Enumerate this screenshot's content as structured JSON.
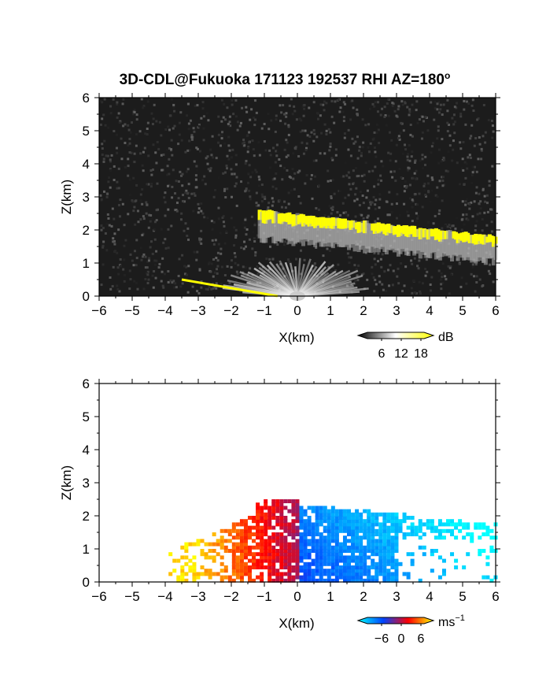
{
  "title": "3D-CDL@Fukuoka 171123 192537 RHI AZ=180",
  "title_suffix": "o",
  "chart_data": [
    {
      "type": "heatmap",
      "panel": "top",
      "quantity_unit": "dB",
      "xlabel": "X(km)",
      "ylabel": "Z(km)",
      "xlim": [
        -6,
        6
      ],
      "ylim": [
        0,
        6
      ],
      "xticks": [
        -6,
        -5,
        -4,
        -3,
        -2,
        -1,
        0,
        1,
        2,
        3,
        4,
        5,
        6
      ],
      "yticks": [
        0,
        1,
        2,
        3,
        4,
        5,
        6
      ],
      "colorbar": {
        "ticks": [
          6,
          12,
          18
        ],
        "unit": "dB",
        "colors": [
          "#000000",
          "#ffffff",
          "#ffff00"
        ]
      },
      "background_color": "#1c1c1c",
      "strong_echo_color": "#ffff00",
      "features": {
        "cloud_layer": {
          "x": [
            -1.2,
            6.0
          ],
          "z_base": [
            2.2,
            1.5
          ],
          "z_top": [
            2.55,
            1.75
          ]
        },
        "low_echo_line": {
          "x": [
            -3.5,
            -0.6
          ],
          "z": [
            0.5,
            0.0
          ]
        },
        "near_field_fan_radius_km": 1.9
      }
    },
    {
      "type": "heatmap",
      "panel": "bottom",
      "quantity_unit": "ms-1",
      "xlabel": "X(km)",
      "ylabel": "Z(km)",
      "xlim": [
        -6,
        6
      ],
      "ylim": [
        0,
        6
      ],
      "xticks": [
        -6,
        -5,
        -4,
        -3,
        -2,
        -1,
        0,
        1,
        2,
        3,
        4,
        5,
        6
      ],
      "yticks": [
        0,
        1,
        2,
        3,
        4,
        5,
        6
      ],
      "colorbar": {
        "ticks": [
          -6,
          0,
          6
        ],
        "unit": "ms",
        "unit_exponent": "-1",
        "colors": [
          "#00ffff",
          "#0044ff",
          "#ff0000",
          "#ffff00"
        ]
      },
      "features": {
        "velocity_sign_boundary_x_km": 0.05,
        "left_region": {
          "x": [
            -3.9,
            0.05
          ],
          "z_top": 2.55,
          "velocity_range": [
            0,
            6
          ]
        },
        "right_region": {
          "x": [
            0.05,
            6.0
          ],
          "z_top": 2.35,
          "velocity_range": [
            -6,
            0
          ]
        }
      }
    }
  ],
  "labels": {
    "xlabel": "X(km)",
    "ylabel": "Z(km)",
    "cb1_unit": "dB",
    "cb2_unit": "ms",
    "cb2_exp": "−1",
    "cb1_ticks": [
      "6",
      "12",
      "18"
    ],
    "cb2_ticks": [
      "−6",
      "0",
      "6"
    ],
    "xticks": [
      "−6",
      "−5",
      "−4",
      "−3",
      "−2",
      "−1",
      "0",
      "1",
      "2",
      "3",
      "4",
      "5",
      "6"
    ],
    "yticks": [
      "0",
      "1",
      "2",
      "3",
      "4",
      "5",
      "6"
    ]
  }
}
